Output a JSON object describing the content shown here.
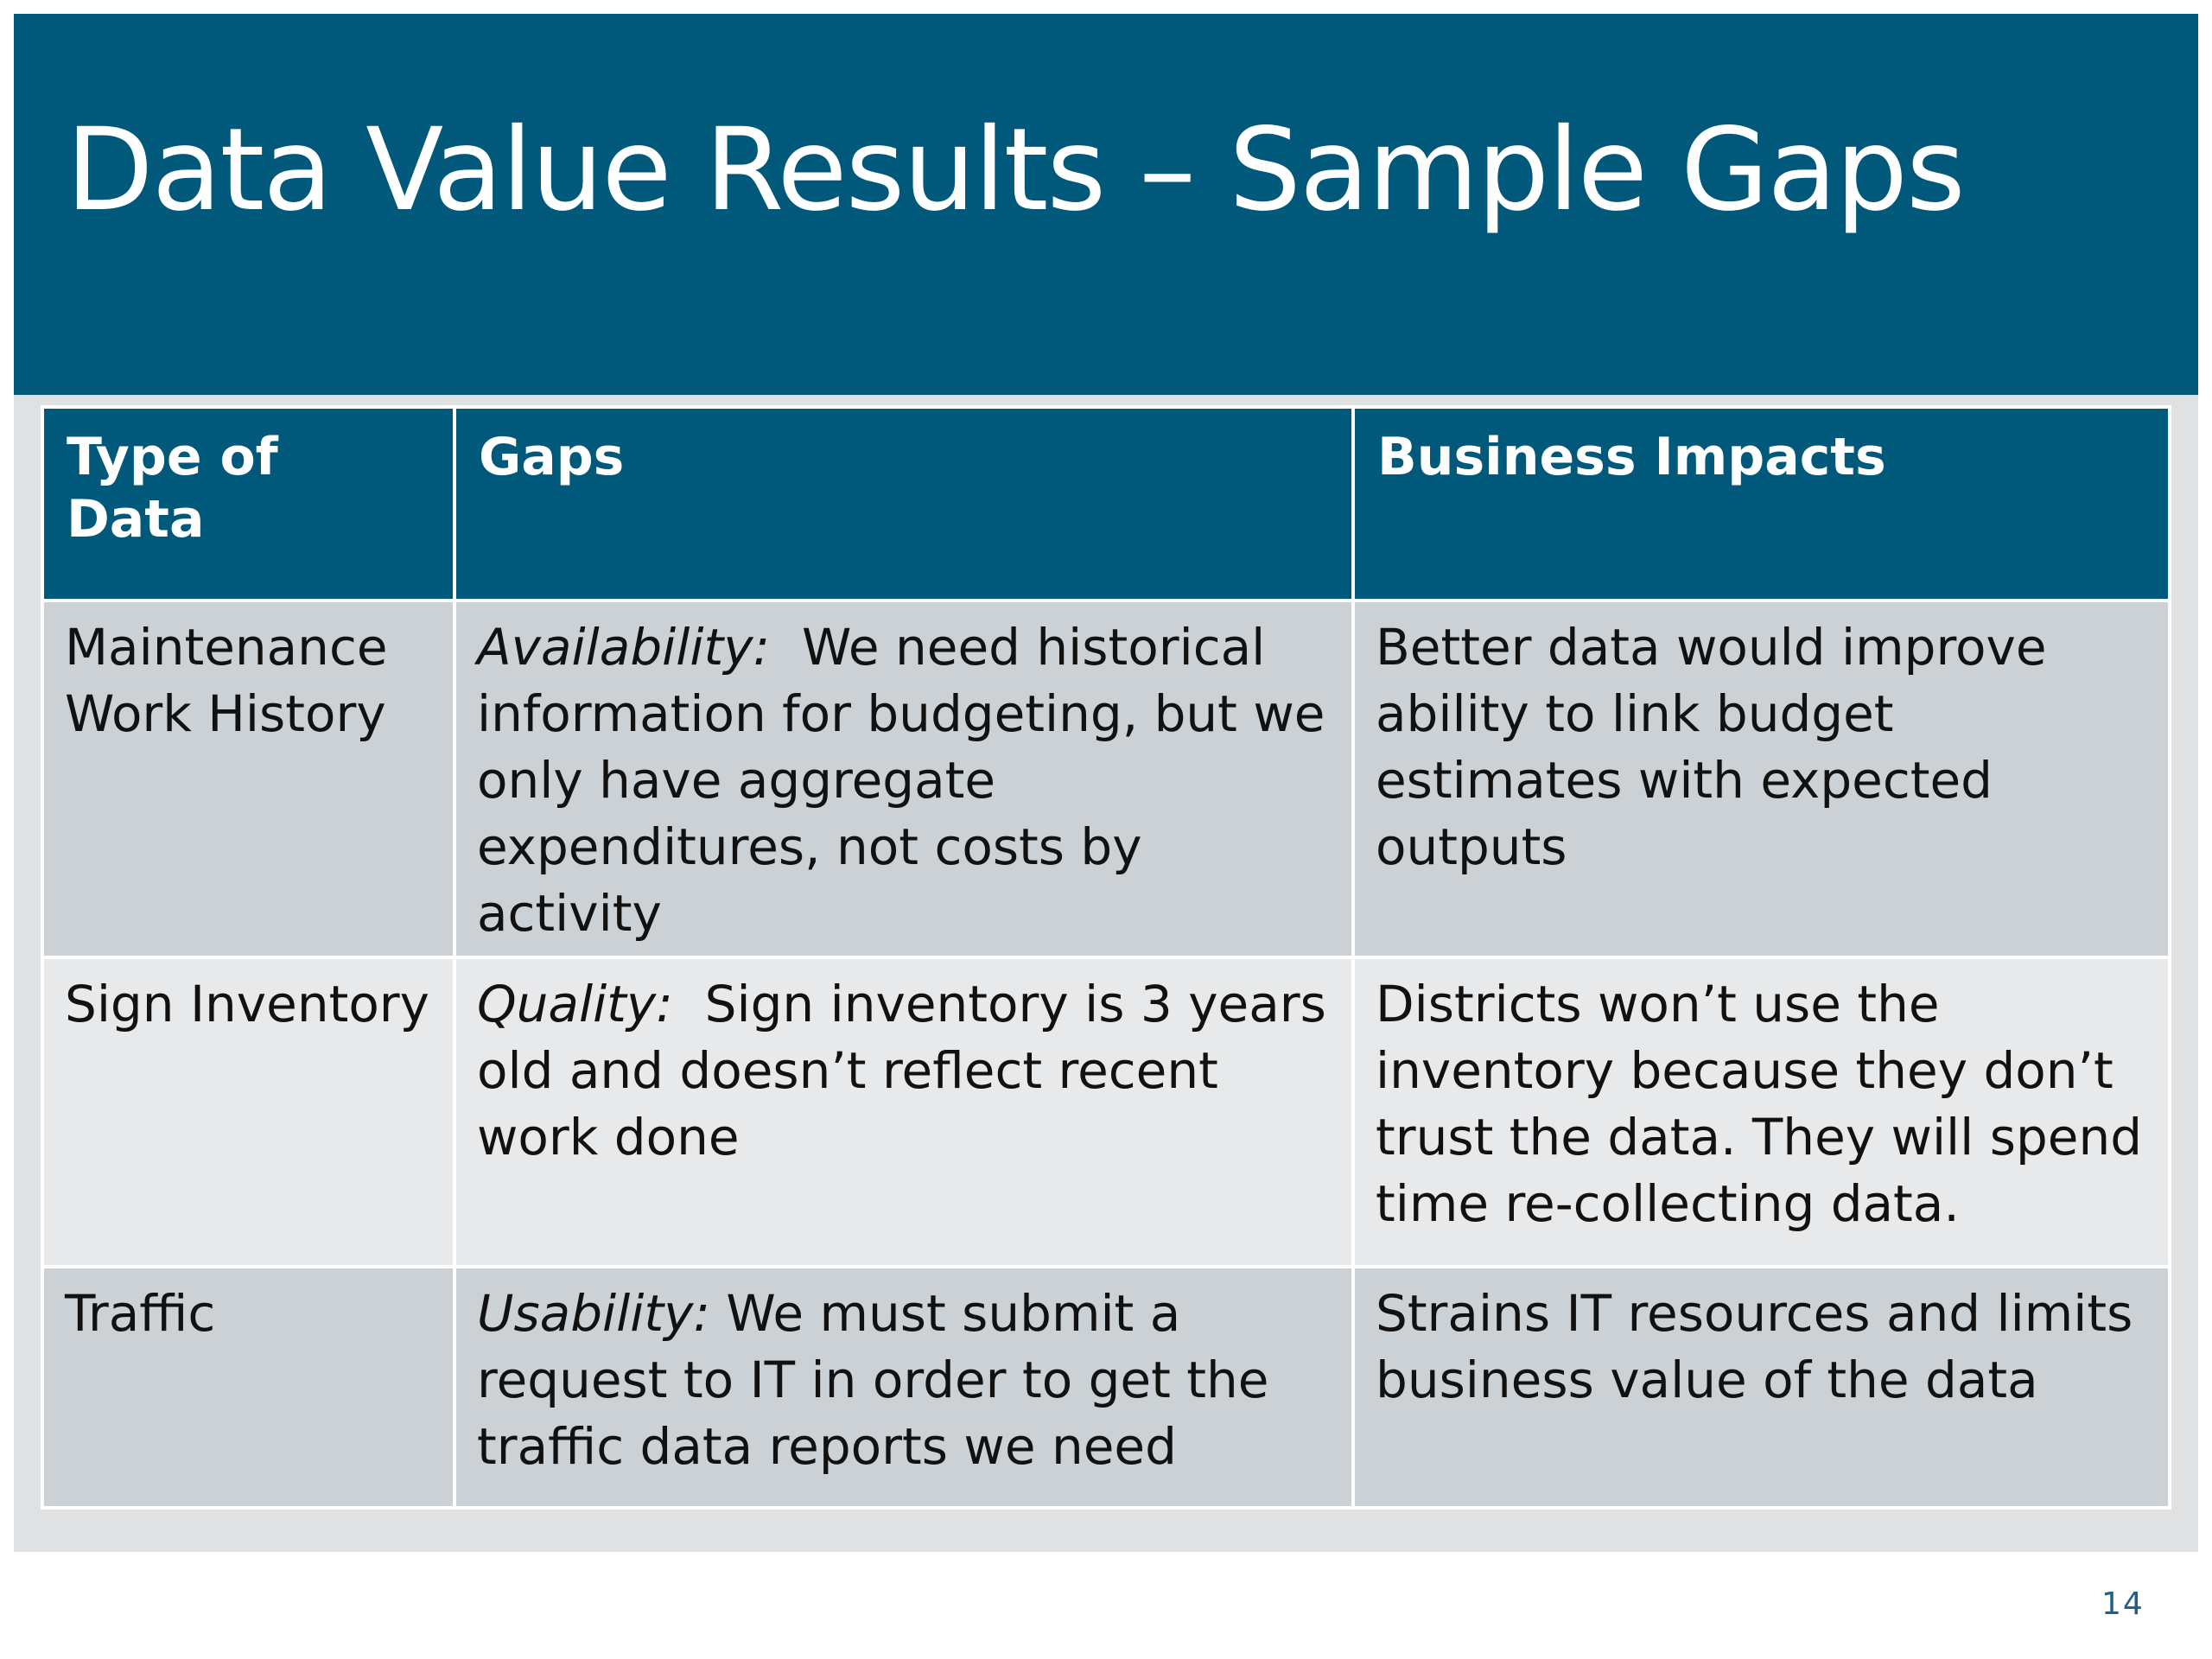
{
  "slide": {
    "title": "Data Value Results – Sample Gaps",
    "page_number": "14"
  },
  "table": {
    "headers": [
      "Type of Data",
      "Gaps",
      "Business Impacts"
    ],
    "rows": [
      {
        "type": "Maintenance Work History",
        "gap_dimension": "Availability:",
        "gap_text": "We need historical information for budgeting, but we only have aggregate expenditures, not costs by activity",
        "impact": "Better data would improve ability to link budget estimates with expected outputs"
      },
      {
        "type": "Sign Inventory",
        "gap_dimension": "Quality:",
        "gap_text": "Sign inventory is 3 years old and doesn’t reflect recent work done",
        "impact": "Districts won’t use the inventory because they don’t trust the data. They will spend time re-collecting data."
      },
      {
        "type": "Traffic",
        "gap_dimension": "Usability:",
        "gap_text": "We must submit a request to IT in order to get the traffic data reports we need",
        "impact": "Strains IT resources and limits business value of the data"
      }
    ]
  },
  "colors": {
    "header_blue": "#00587a",
    "row_dark": "#cbd1d5",
    "row_light": "#e8e9ea"
  }
}
